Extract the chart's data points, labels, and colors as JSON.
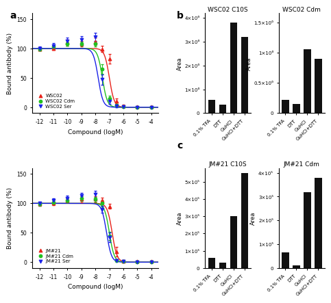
{
  "panel_a_top": {
    "xlabel": "Compound (logM)",
    "ylabel": "Bound antibody (%)",
    "xlim": [
      -12.5,
      -3.5
    ],
    "ylim": [
      -10,
      160
    ],
    "xticks": [
      -12,
      -11,
      -10,
      -9,
      -8,
      -7,
      -6,
      -5,
      -4
    ],
    "yticks": [
      0,
      50,
      100,
      150
    ],
    "series": [
      {
        "label": "WSC02",
        "color": "#e8221a",
        "marker": "^",
        "x": [
          -12,
          -11,
          -10,
          -9,
          -8,
          -7.5,
          -7,
          -6.5,
          -6,
          -5,
          -4
        ],
        "y": [
          99,
          100,
          110,
          108,
          112,
          99,
          82,
          10,
          2,
          1,
          1
        ],
        "yerr": [
          3,
          3,
          5,
          5,
          6,
          5,
          8,
          5,
          2,
          1,
          1
        ],
        "ec50": -7.0
      },
      {
        "label": "WSC02 Cdm",
        "color": "#22c020",
        "marker": "o",
        "x": [
          -12,
          -11,
          -10,
          -9,
          -8,
          -7.5,
          -7,
          -6.5,
          -6,
          -5,
          -4
        ],
        "y": [
          99,
          103,
          108,
          108,
          108,
          65,
          15,
          3,
          1,
          0,
          0
        ],
        "yerr": [
          3,
          3,
          4,
          4,
          5,
          8,
          5,
          2,
          1,
          1,
          1
        ],
        "ec50": -7.5
      },
      {
        "label": "WSC02 Ser",
        "color": "#1a22e8",
        "marker": "v",
        "x": [
          -12,
          -11,
          -10,
          -9,
          -8,
          -7.5,
          -7,
          -6.5,
          -6,
          -5,
          -4
        ],
        "y": [
          100,
          105,
          113,
          115,
          120,
          47,
          10,
          2,
          1,
          0,
          0
        ],
        "yerr": [
          3,
          4,
          5,
          6,
          7,
          9,
          5,
          2,
          1,
          1,
          1
        ],
        "ec50": -7.8
      }
    ]
  },
  "panel_a_bottom": {
    "xlabel": "Compound (logM)",
    "ylabel": "Bound antibody (%)",
    "xlim": [
      -12.5,
      -3.5
    ],
    "ylim": [
      -10,
      160
    ],
    "xticks": [
      -12,
      -11,
      -10,
      -9,
      -8,
      -7,
      -6,
      -5,
      -4
    ],
    "yticks": [
      0,
      50,
      100,
      150
    ],
    "series": [
      {
        "label": "JM#21",
        "color": "#e8221a",
        "marker": "^",
        "x": [
          -12,
          -11,
          -10,
          -9,
          -8,
          -7.5,
          -7,
          -6.5,
          -6,
          -5,
          -4
        ],
        "y": [
          99,
          100,
          105,
          107,
          107,
          105,
          95,
          18,
          2,
          1,
          1
        ],
        "yerr": [
          3,
          3,
          4,
          5,
          5,
          5,
          4,
          8,
          2,
          1,
          1
        ],
        "ec50": -6.8
      },
      {
        "label": "JM#21 Cdm",
        "color": "#22c020",
        "marker": "o",
        "x": [
          -12,
          -11,
          -10,
          -9,
          -8,
          -7.5,
          -7,
          -6.5,
          -6,
          -5,
          -4
        ],
        "y": [
          99,
          102,
          105,
          108,
          107,
          100,
          45,
          3,
          1,
          0,
          0
        ],
        "yerr": [
          3,
          3,
          4,
          4,
          4,
          5,
          7,
          2,
          1,
          1,
          1
        ],
        "ec50": -7.0
      },
      {
        "label": "JM#21 Ser",
        "color": "#1a22e8",
        "marker": "v",
        "x": [
          -12,
          -11,
          -10,
          -9,
          -8,
          -7.5,
          -7,
          -6.5,
          -6,
          -5,
          -4
        ],
        "y": [
          100,
          105,
          108,
          113,
          115,
          90,
          42,
          3,
          1,
          0,
          0
        ],
        "yerr": [
          3,
          4,
          5,
          5,
          6,
          6,
          8,
          2,
          1,
          1,
          1
        ],
        "ec50": -7.2
      }
    ]
  },
  "panel_b_left": {
    "title": "WSC02 C10S",
    "ylabel": "Area",
    "categories": [
      "0.1% TFA",
      "DTT",
      "GuHCl",
      "GuHCl+DTT"
    ],
    "values": [
      550000.0,
      350000.0,
      3800000.0,
      3200000.0
    ],
    "ylim": [
      0,
      4200000.0
    ],
    "ytick_max": 4000000.0,
    "ytick_step": 1000000.0,
    "ymax_label": "4×10⁶"
  },
  "panel_b_right": {
    "title": "WSC02 Cdm",
    "ylabel": "Area",
    "categories": [
      "0.1% TFA",
      "DTT",
      "GuHCl",
      "GuHCl+DTT"
    ],
    "values": [
      220000.0,
      150000.0,
      1050000.0,
      900000.0
    ],
    "ylim": [
      0,
      1650000.0
    ],
    "ytick_max": 1500000.0,
    "ytick_step": 500000.0,
    "ymax_label": "1.5×10⁶"
  },
  "panel_c_left": {
    "title": "JM#21 C10S",
    "ylabel": "Area",
    "categories": [
      "0.1% TFA",
      "DTT",
      "GuHCl",
      "GuHCl+DTT"
    ],
    "values": [
      60000.0,
      30000.0,
      300000.0,
      550000.0
    ],
    "ylim": [
      0,
      580000.0
    ],
    "ytick_max": 500000.0,
    "ytick_step": 100000.0,
    "ymax_label": "5×10⁵"
  },
  "panel_c_right": {
    "title": "JM#21 Cdm",
    "ylabel": "Area",
    "categories": [
      "0.1% TFA",
      "DTT",
      "GuHCl",
      "GuHCl+DTT"
    ],
    "values": [
      65000.0,
      12000.0,
      320000.0,
      380000.0
    ],
    "ylim": [
      0,
      420000.0
    ],
    "ytick_max": 400000.0,
    "ytick_step": 100000.0,
    "ymax_label": "4×10⁵"
  },
  "bar_color": "#111111",
  "background_color": "#ffffff"
}
